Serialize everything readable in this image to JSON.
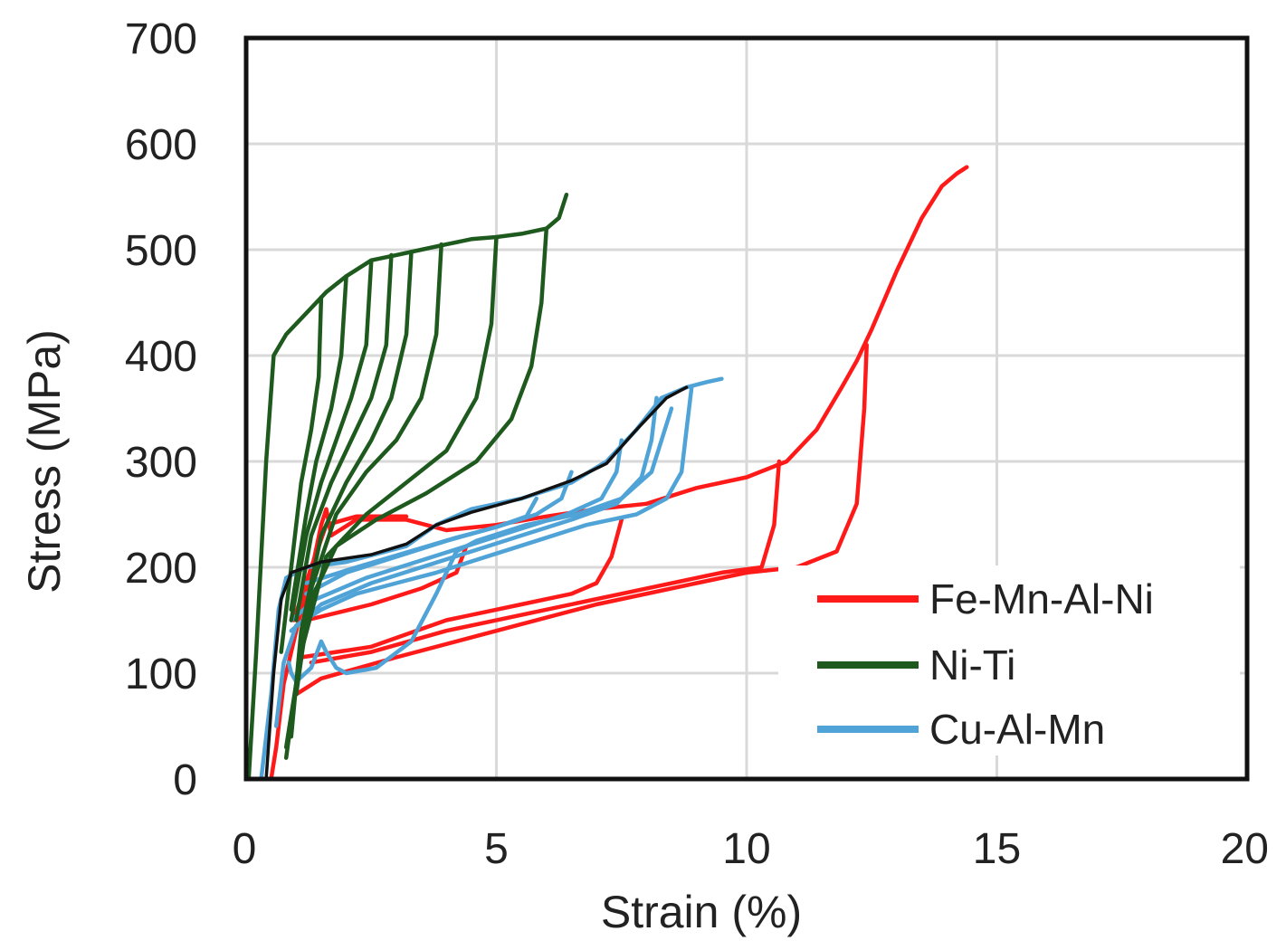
{
  "chart_data": {
    "type": "line",
    "xlabel": "Strain (%)",
    "ylabel": "Stress (MPa)",
    "xlim": [
      0,
      20
    ],
    "ylim": [
      0,
      700
    ],
    "xticks": [
      "0",
      "5",
      "10",
      "15",
      "20"
    ],
    "yticks": [
      "0",
      "100",
      "200",
      "300",
      "400",
      "500",
      "600",
      "700"
    ],
    "grid": true,
    "legend_position": "bottom-right",
    "series": [
      {
        "name": "Fe-Mn-Al-Ni",
        "color": "#ff1a1a",
        "curves": [
          [
            [
              0.5,
              0
            ],
            [
              0.6,
              30
            ],
            [
              0.75,
              90
            ],
            [
              1.0,
              140
            ],
            [
              1.3,
              195
            ],
            [
              1.5,
              240
            ],
            [
              1.6,
              255
            ],
            [
              1.7,
              230
            ],
            [
              2.2,
              245
            ],
            [
              3.2,
              245
            ],
            [
              4.0,
              235
            ],
            [
              5.0,
              240
            ],
            [
              6.0,
              248
            ],
            [
              7.0,
              255
            ],
            [
              8.0,
              260
            ],
            [
              9.0,
              275
            ],
            [
              10.0,
              285
            ],
            [
              10.8,
              300
            ],
            [
              11.4,
              330
            ],
            [
              11.9,
              370
            ],
            [
              12.2,
              395
            ],
            [
              12.5,
              425
            ],
            [
              13.0,
              480
            ],
            [
              13.5,
              530
            ],
            [
              13.9,
              560
            ],
            [
              14.2,
              572
            ],
            [
              14.4,
              578
            ]
          ],
          [
            [
              1.0,
              80
            ],
            [
              1.5,
              95
            ],
            [
              3.0,
              115
            ],
            [
              5.0,
              140
            ],
            [
              7.0,
              165
            ],
            [
              9.0,
              185
            ],
            [
              10.0,
              195
            ],
            [
              11.0,
              200
            ],
            [
              11.8,
              215
            ],
            [
              12.2,
              260
            ],
            [
              12.35,
              350
            ],
            [
              12.4,
              410
            ]
          ],
          [
            [
              1.3,
              110
            ],
            [
              2.5,
              120
            ],
            [
              4.0,
              140
            ],
            [
              6.0,
              160
            ],
            [
              8.0,
              180
            ],
            [
              9.5,
              195
            ],
            [
              10.3,
              200
            ],
            [
              10.55,
              240
            ],
            [
              10.65,
              300
            ]
          ],
          [
            [
              1.1,
              115
            ],
            [
              2.5,
              125
            ],
            [
              4.0,
              150
            ],
            [
              5.5,
              165
            ],
            [
              6.5,
              175
            ],
            [
              7.0,
              185
            ],
            [
              7.3,
              210
            ],
            [
              7.5,
              245
            ]
          ],
          [
            [
              1.2,
              150
            ],
            [
              2.5,
              165
            ],
            [
              3.5,
              180
            ],
            [
              4.2,
              195
            ],
            [
              4.4,
              220
            ]
          ],
          [
            [
              0.95,
              150
            ],
            [
              1.3,
              200
            ],
            [
              1.6,
              240
            ],
            [
              2.2,
              248
            ],
            [
              3.2,
              248
            ]
          ]
        ]
      },
      {
        "name": "Ni-Ti",
        "color": "#1e5a1e",
        "curves": [
          [
            [
              0.05,
              0
            ],
            [
              0.2,
              120
            ],
            [
              0.4,
              300
            ],
            [
              0.55,
              400
            ],
            [
              0.8,
              420
            ],
            [
              1.2,
              440
            ],
            [
              1.6,
              460
            ],
            [
              2.0,
              475
            ],
            [
              2.5,
              490
            ],
            [
              3.0,
              495
            ],
            [
              3.5,
              500
            ],
            [
              4.0,
              505
            ],
            [
              4.5,
              510
            ],
            [
              5.0,
              512
            ],
            [
              5.5,
              515
            ],
            [
              6.0,
              520
            ],
            [
              6.25,
              530
            ],
            [
              6.4,
              552
            ]
          ],
          [
            [
              6.0,
              520
            ],
            [
              5.9,
              450
            ],
            [
              5.7,
              390
            ],
            [
              5.3,
              340
            ],
            [
              4.6,
              300
            ],
            [
              3.6,
              270
            ],
            [
              2.6,
              245
            ],
            [
              1.8,
              220
            ],
            [
              1.3,
              170
            ],
            [
              1.0,
              90
            ],
            [
              0.8,
              20
            ]
          ],
          [
            [
              5.0,
              512
            ],
            [
              4.9,
              430
            ],
            [
              4.6,
              360
            ],
            [
              4.0,
              310
            ],
            [
              3.2,
              280
            ],
            [
              2.4,
              250
            ],
            [
              1.6,
              210
            ],
            [
              1.1,
              120
            ],
            [
              0.8,
              30
            ]
          ],
          [
            [
              3.9,
              505
            ],
            [
              3.8,
              420
            ],
            [
              3.5,
              360
            ],
            [
              3.0,
              320
            ],
            [
              2.4,
              290
            ],
            [
              1.8,
              250
            ],
            [
              1.3,
              180
            ],
            [
              1.0,
              80
            ]
          ],
          [
            [
              3.3,
              498
            ],
            [
              3.2,
              420
            ],
            [
              2.9,
              360
            ],
            [
              2.5,
              320
            ],
            [
              2.0,
              280
            ],
            [
              1.5,
              230
            ],
            [
              1.1,
              140
            ],
            [
              0.9,
              40
            ]
          ],
          [
            [
              2.9,
              495
            ],
            [
              2.8,
              410
            ],
            [
              2.5,
              360
            ],
            [
              2.1,
              320
            ],
            [
              1.7,
              280
            ],
            [
              1.3,
              230
            ],
            [
              1.0,
              150
            ]
          ],
          [
            [
              2.5,
              490
            ],
            [
              2.4,
              410
            ],
            [
              2.1,
              360
            ],
            [
              1.8,
              320
            ],
            [
              1.5,
              280
            ],
            [
              1.2,
              230
            ],
            [
              0.9,
              150
            ]
          ],
          [
            [
              2.0,
              475
            ],
            [
              1.9,
              400
            ],
            [
              1.7,
              350
            ],
            [
              1.4,
              300
            ],
            [
              1.2,
              250
            ],
            [
              0.9,
              160
            ]
          ],
          [
            [
              1.5,
              455
            ],
            [
              1.45,
              380
            ],
            [
              1.3,
              330
            ],
            [
              1.1,
              280
            ],
            [
              0.9,
              200
            ],
            [
              0.7,
              120
            ]
          ]
        ]
      },
      {
        "name": "Cu-Al-Mn",
        "color": "#4fa3d6",
        "curves": [
          [
            [
              0.3,
              0
            ],
            [
              0.5,
              80
            ],
            [
              0.65,
              160
            ],
            [
              0.8,
              190
            ],
            [
              1.2,
              200
            ],
            [
              2.0,
              205
            ],
            [
              2.8,
              215
            ],
            [
              3.2,
              220
            ],
            [
              3.8,
              240
            ],
            [
              4.5,
              255
            ],
            [
              5.5,
              265
            ],
            [
              6.5,
              280
            ],
            [
              7.2,
              300
            ],
            [
              7.8,
              330
            ],
            [
              8.3,
              360
            ],
            [
              8.8,
              370
            ],
            [
              9.2,
              375
            ],
            [
              9.5,
              378
            ]
          ],
          [
            [
              8.9,
              370
            ],
            [
              8.8,
              330
            ],
            [
              8.7,
              290
            ],
            [
              8.4,
              265
            ],
            [
              7.8,
              250
            ],
            [
              6.8,
              240
            ],
            [
              5.8,
              225
            ],
            [
              4.8,
              210
            ],
            [
              3.8,
              195
            ],
            [
              3.0,
              185
            ],
            [
              2.2,
              175
            ],
            [
              1.5,
              160
            ],
            [
              1.0,
              145
            ],
            [
              0.75,
              110
            ],
            [
              0.6,
              50
            ]
          ],
          [
            [
              8.2,
              360
            ],
            [
              8.1,
              320
            ],
            [
              7.9,
              285
            ],
            [
              7.4,
              260
            ],
            [
              6.5,
              245
            ],
            [
              5.5,
              230
            ],
            [
              4.5,
              215
            ],
            [
              3.5,
              200
            ],
            [
              2.5,
              185
            ],
            [
              1.5,
              165
            ],
            [
              0.9,
              140
            ]
          ],
          [
            [
              7.5,
              320
            ],
            [
              7.4,
              290
            ],
            [
              7.1,
              265
            ],
            [
              6.4,
              250
            ],
            [
              5.4,
              235
            ],
            [
              4.4,
              220
            ],
            [
              3.4,
              205
            ],
            [
              2.4,
              190
            ],
            [
              1.4,
              170
            ],
            [
              0.9,
              150
            ]
          ],
          [
            [
              6.5,
              290
            ],
            [
              6.3,
              265
            ],
            [
              5.8,
              250
            ],
            [
              5.0,
              238
            ],
            [
              4.0,
              225
            ],
            [
              3.0,
              210
            ],
            [
              2.0,
              195
            ],
            [
              1.2,
              175
            ]
          ],
          [
            [
              5.8,
              265
            ],
            [
              5.6,
              248
            ],
            [
              5.0,
              238
            ],
            [
              4.2,
              228
            ],
            [
              3.2,
              214
            ],
            [
              2.2,
              200
            ],
            [
              1.2,
              185
            ]
          ],
          [
            [
              8.5,
              350
            ],
            [
              8.1,
              290
            ],
            [
              7.5,
              265
            ],
            [
              6.6,
              250
            ],
            [
              5.6,
              240
            ],
            [
              4.6,
              225
            ],
            [
              4.2,
              215
            ],
            [
              3.8,
              175
            ],
            [
              3.3,
              130
            ],
            [
              2.6,
              105
            ],
            [
              2.0,
              100
            ],
            [
              1.8,
              105
            ],
            [
              1.6,
              120
            ],
            [
              1.5,
              130
            ],
            [
              1.3,
              105
            ],
            [
              1.0,
              92
            ],
            [
              0.9,
              100
            ],
            [
              0.85,
              110
            ]
          ]
        ]
      },
      {
        "name": "",
        "color": "#111111",
        "curves": [
          [
            [
              0.4,
              0
            ],
            [
              0.55,
              100
            ],
            [
              0.7,
              170
            ],
            [
              0.9,
              195
            ],
            [
              1.5,
              205
            ],
            [
              2.5,
              212
            ],
            [
              3.2,
              222
            ],
            [
              3.8,
              240
            ],
            [
              4.5,
              252
            ],
            [
              5.5,
              265
            ],
            [
              6.5,
              282
            ],
            [
              7.2,
              298
            ],
            [
              7.8,
              330
            ],
            [
              8.4,
              360
            ],
            [
              8.8,
              370
            ]
          ]
        ]
      }
    ]
  },
  "legend": {
    "items": [
      {
        "label": "Fe-Mn-Al-Ni",
        "color": "#ff1a1a"
      },
      {
        "label": "Ni-Ti",
        "color": "#1e5a1e"
      },
      {
        "label": "Cu-Al-Mn",
        "color": "#4fa3d6"
      }
    ]
  }
}
